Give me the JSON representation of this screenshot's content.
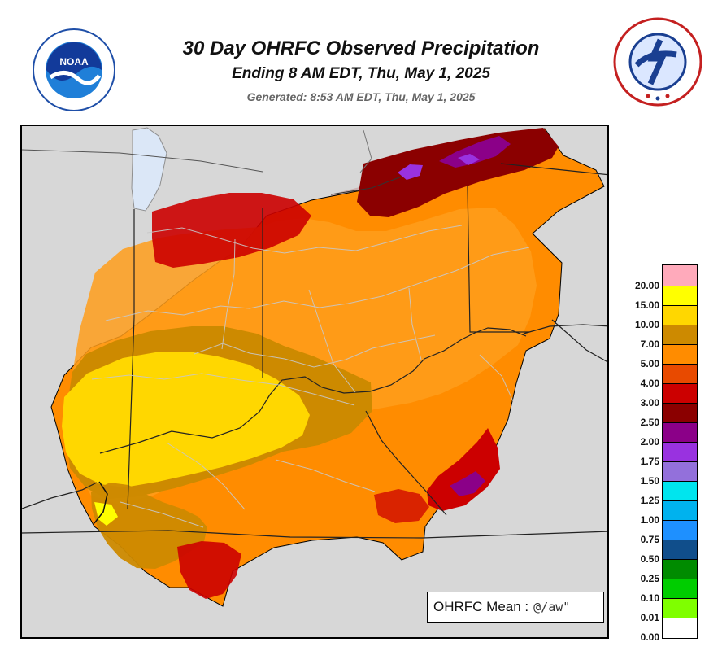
{
  "header": {
    "title": "30 Day OHRFC Observed Precipitation",
    "subtitle": "Ending 8 AM EDT, Thu, May 1, 2025",
    "generated": "Generated: 8:53 AM EDT, Thu, May 1, 2025"
  },
  "logos": {
    "noaa_icon": "noaa-logo",
    "nws_icon": "nws-logo"
  },
  "map": {
    "region": "Ohio River Forecast Center",
    "mean_label": "OHRFC Mean :",
    "mean_value": "@/aw\""
  },
  "legend": {
    "labels": [
      "20.00",
      "15.00",
      "10.00",
      "7.00",
      "5.00",
      "4.00",
      "3.00",
      "2.50",
      "2.00",
      "1.75",
      "1.50",
      "1.25",
      "1.00",
      "0.75",
      "0.50",
      "0.25",
      "0.10",
      "0.01",
      "0.00"
    ],
    "colors": [
      "#ffaabb",
      "#ffff00",
      "#ffd700",
      "#cd8a00",
      "#ff8c00",
      "#e84a00",
      "#cc0000",
      "#8b0000",
      "#8b0088",
      "#9932e0",
      "#9370db",
      "#00e5ee",
      "#00b2ee",
      "#1e90ff",
      "#104e8b",
      "#008b00",
      "#00cd00",
      "#7fff00",
      "#ffffff"
    ]
  }
}
